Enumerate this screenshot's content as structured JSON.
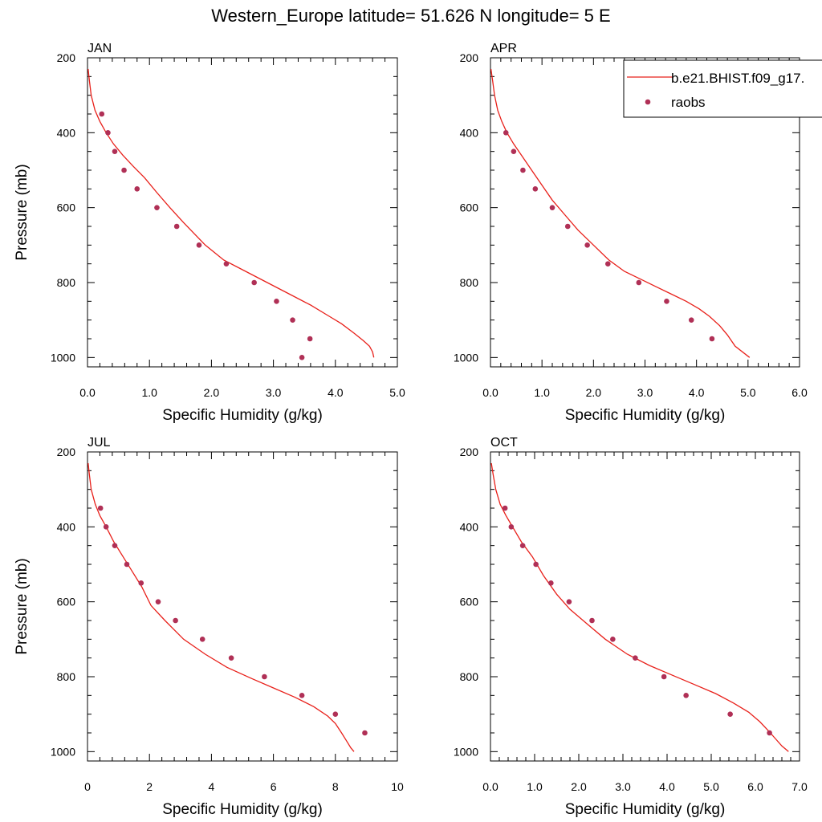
{
  "title": "Western_Europe  latitude= 51.626 N longitude= 5 E",
  "legend": {
    "model_label": "b.e21.BHIST.f09_g17.",
    "obs_label": "raobs",
    "model_color": "#e8201a",
    "obs_color": "#b03056"
  },
  "chart_data": [
    {
      "type": "line",
      "panel": "JAN",
      "xlabel": "Specific Humidity (g/kg)",
      "ylabel": "Pressure (mb)",
      "xlim": [
        0,
        5
      ],
      "ylim": [
        1025,
        200
      ],
      "xticks": [
        0,
        1,
        2,
        3,
        4,
        5
      ],
      "xtick_labels": [
        "0.0",
        "1.0",
        "2.0",
        "3.0",
        "4.0",
        "5.0"
      ],
      "yticks": [
        200,
        400,
        600,
        800,
        1000
      ],
      "ytick_labels": [
        "200",
        "400",
        "600",
        "800",
        "1000"
      ],
      "series": [
        {
          "kind": "line",
          "x": [
            0.01,
            0.03,
            0.06,
            0.12,
            0.2,
            0.3,
            0.42,
            0.57,
            0.74,
            0.92,
            1.12,
            1.33,
            1.55,
            1.9,
            2.2,
            2.55,
            2.9,
            3.25,
            3.6,
            3.9,
            4.1,
            4.3,
            4.45,
            4.55,
            4.6,
            4.62
          ],
          "y": [
            230,
            260,
            300,
            340,
            370,
            400,
            430,
            460,
            490,
            520,
            560,
            600,
            640,
            700,
            740,
            770,
            800,
            830,
            860,
            890,
            910,
            935,
            955,
            970,
            985,
            1000
          ]
        },
        {
          "kind": "scatter",
          "x": [
            0.23,
            0.33,
            0.44,
            0.59,
            0.8,
            1.12,
            1.44,
            1.8,
            2.24,
            2.69,
            3.05,
            3.31,
            3.59,
            3.46
          ],
          "y": [
            350,
            400,
            450,
            500,
            550,
            600,
            650,
            700,
            750,
            800,
            850,
            900,
            950,
            1000
          ]
        }
      ]
    },
    {
      "type": "line",
      "panel": "APR",
      "xlabel": "Specific Humidity (g/kg)",
      "ylabel": "",
      "xlim": [
        0,
        6
      ],
      "ylim": [
        1025,
        200
      ],
      "xticks": [
        0,
        1,
        2,
        3,
        4,
        5,
        6
      ],
      "xtick_labels": [
        "0.0",
        "1.0",
        "2.0",
        "3.0",
        "4.0",
        "5.0",
        "6.0"
      ],
      "yticks": [
        200,
        400,
        600,
        800,
        1000
      ],
      "ytick_labels": [
        "200",
        "400",
        "600",
        "800",
        "1000"
      ],
      "series": [
        {
          "kind": "line",
          "x": [
            0.01,
            0.04,
            0.08,
            0.14,
            0.22,
            0.32,
            0.45,
            0.6,
            0.8,
            1.0,
            1.2,
            1.45,
            1.7,
            2.0,
            2.3,
            2.6,
            2.9,
            3.2,
            3.5,
            3.8,
            4.05,
            4.25,
            4.45,
            4.6,
            4.75,
            5.03
          ],
          "y": [
            230,
            260,
            300,
            340,
            370,
            400,
            430,
            460,
            500,
            540,
            580,
            620,
            660,
            700,
            740,
            770,
            790,
            810,
            830,
            850,
            870,
            890,
            915,
            940,
            970,
            1000
          ]
        },
        {
          "kind": "scatter",
          "x": [
            0.3,
            0.45,
            0.63,
            0.87,
            1.2,
            1.5,
            1.88,
            2.28,
            2.88,
            3.42,
            3.9,
            4.3
          ],
          "y": [
            400,
            450,
            500,
            550,
            600,
            650,
            700,
            750,
            800,
            850,
            900,
            950
          ]
        }
      ]
    },
    {
      "type": "line",
      "panel": "JUL",
      "xlabel": "Specific Humidity (g/kg)",
      "ylabel": "Pressure (mb)",
      "xlim": [
        0,
        10
      ],
      "ylim": [
        1025,
        200
      ],
      "xticks": [
        0,
        2,
        4,
        6,
        8,
        10
      ],
      "xtick_labels": [
        "0",
        "2",
        "4",
        "6",
        "8",
        "10"
      ],
      "yticks": [
        200,
        400,
        600,
        800,
        1000
      ],
      "ytick_labels": [
        "200",
        "400",
        "600",
        "800",
        "1000"
      ],
      "series": [
        {
          "kind": "line",
          "x": [
            0.02,
            0.06,
            0.12,
            0.25,
            0.4,
            0.6,
            0.85,
            1.15,
            1.45,
            1.75,
            2.05,
            2.5,
            3.1,
            3.8,
            4.5,
            5.3,
            6.0,
            6.7,
            7.3,
            7.75,
            8.0,
            8.2,
            8.35,
            8.5,
            8.6
          ],
          "y": [
            230,
            260,
            300,
            340,
            370,
            400,
            440,
            480,
            520,
            560,
            610,
            650,
            700,
            740,
            775,
            805,
            830,
            855,
            880,
            905,
            925,
            950,
            970,
            990,
            1000
          ]
        },
        {
          "kind": "scatter",
          "x": [
            0.42,
            0.6,
            0.88,
            1.27,
            1.73,
            2.28,
            2.84,
            3.71,
            4.64,
            5.71,
            6.92,
            8.0,
            8.95
          ],
          "y": [
            350,
            400,
            450,
            500,
            550,
            600,
            650,
            700,
            750,
            800,
            850,
            900,
            950
          ]
        }
      ]
    },
    {
      "type": "line",
      "panel": "OCT",
      "xlabel": "Specific Humidity (g/kg)",
      "ylabel": "",
      "xlim": [
        0,
        7
      ],
      "ylim": [
        1025,
        200
      ],
      "xticks": [
        0,
        1,
        2,
        3,
        4,
        5,
        6,
        7
      ],
      "xtick_labels": [
        "0.0",
        "1.0",
        "2.0",
        "3.0",
        "4.0",
        "5.0",
        "6.0",
        "7.0"
      ],
      "yticks": [
        200,
        400,
        600,
        800,
        1000
      ],
      "ytick_labels": [
        "200",
        "400",
        "600",
        "800",
        "1000"
      ],
      "series": [
        {
          "kind": "line",
          "x": [
            0.02,
            0.06,
            0.12,
            0.22,
            0.35,
            0.5,
            0.7,
            0.95,
            1.2,
            1.5,
            1.8,
            2.2,
            2.6,
            3.1,
            3.6,
            4.1,
            4.6,
            5.1,
            5.5,
            5.85,
            6.1,
            6.3,
            6.45,
            6.6,
            6.75
          ],
          "y": [
            230,
            260,
            300,
            340,
            370,
            400,
            440,
            480,
            530,
            580,
            620,
            660,
            700,
            740,
            770,
            795,
            820,
            845,
            870,
            895,
            920,
            945,
            965,
            985,
            1000
          ]
        },
        {
          "kind": "scatter",
          "x": [
            0.33,
            0.47,
            0.73,
            1.03,
            1.37,
            1.78,
            2.3,
            2.77,
            3.28,
            3.93,
            4.43,
            5.43,
            6.32
          ],
          "y": [
            350,
            400,
            450,
            500,
            550,
            600,
            650,
            700,
            750,
            800,
            850,
            900,
            950
          ]
        }
      ]
    }
  ]
}
